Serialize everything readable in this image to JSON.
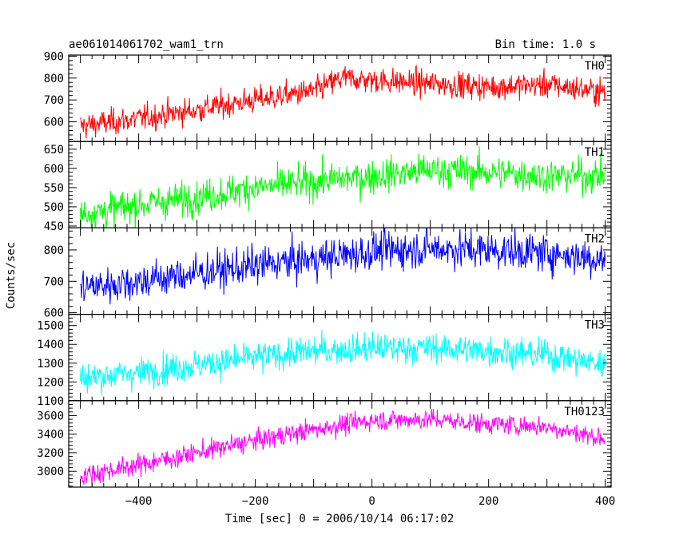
{
  "chart_data": {
    "type": "line",
    "title": "ae061014061702_wam1_trn",
    "bin_time": "Bin time: 1.0 s",
    "xlabel": "Time [sec] 0 = 2006/10/14 06:17:02",
    "ylabel": "Counts/sec",
    "xlim": [
      -520,
      410
    ],
    "x_ticks": [
      -400,
      -200,
      0,
      200,
      400
    ],
    "x_tick_labels": [
      "−400",
      "−200",
      "0",
      "200",
      "400"
    ],
    "x_range_data": [
      -500,
      400
    ],
    "panels": [
      {
        "name": "TH0",
        "color": "#ff0000",
        "ylim": [
          510,
          905
        ],
        "y_ticks": [
          600,
          700,
          800,
          900
        ],
        "y_tick_labels": [
          "600",
          "700",
          "800",
          "900"
        ],
        "trend_x": [
          -500,
          -400,
          -300,
          -200,
          -100,
          -50,
          0,
          100,
          200,
          300,
          400
        ],
        "trend_y": [
          580,
          615,
          655,
          700,
          740,
          800,
          790,
          775,
          760,
          770,
          735
        ],
        "noise": 30
      },
      {
        "name": "TH1",
        "color": "#00ff00",
        "ylim": [
          445,
          670
        ],
        "y_ticks": [
          450,
          500,
          550,
          600,
          650
        ],
        "y_tick_labels": [
          "450",
          "500",
          "550",
          "600",
          "650"
        ],
        "trend_x": [
          -500,
          -400,
          -300,
          -200,
          -100,
          0,
          100,
          200,
          300,
          400
        ],
        "trend_y": [
          480,
          505,
          525,
          550,
          565,
          580,
          595,
          590,
          580,
          580
        ],
        "noise": 22
      },
      {
        "name": "TH2",
        "color": "#0000ff",
        "ylim": [
          595,
          870
        ],
        "y_ticks": [
          600,
          700,
          800
        ],
        "y_tick_labels": [
          "600",
          "700",
          "800"
        ],
        "trend_x": [
          -500,
          -400,
          -300,
          -200,
          -100,
          0,
          100,
          200,
          300,
          400
        ],
        "trend_y": [
          680,
          700,
          725,
          750,
          770,
          795,
          805,
          800,
          790,
          770
        ],
        "noise": 30
      },
      {
        "name": "TH3",
        "color": "#00ffff",
        "ylim": [
          1100,
          1560
        ],
        "y_ticks": [
          1100,
          1200,
          1300,
          1400,
          1500
        ],
        "y_tick_labels": [
          "1100",
          "1200",
          "1300",
          "1400",
          "1500"
        ],
        "trend_x": [
          -500,
          -400,
          -300,
          -200,
          -100,
          0,
          100,
          200,
          300,
          400
        ],
        "trend_y": [
          1220,
          1250,
          1290,
          1330,
          1365,
          1380,
          1380,
          1365,
          1345,
          1290
        ],
        "noise": 40
      },
      {
        "name": "TH0123",
        "color": "#ff00ff",
        "ylim": [
          2830,
          3760
        ],
        "y_ticks": [
          3000,
          3200,
          3400,
          3600
        ],
        "y_tick_labels": [
          "3000",
          "3200",
          "3400",
          "3600"
        ],
        "trend_x": [
          -500,
          -400,
          -300,
          -200,
          -100,
          0,
          100,
          200,
          300,
          400
        ],
        "trend_y": [
          2950,
          3070,
          3200,
          3330,
          3450,
          3550,
          3560,
          3510,
          3480,
          3350
        ],
        "noise": 55
      }
    ]
  }
}
